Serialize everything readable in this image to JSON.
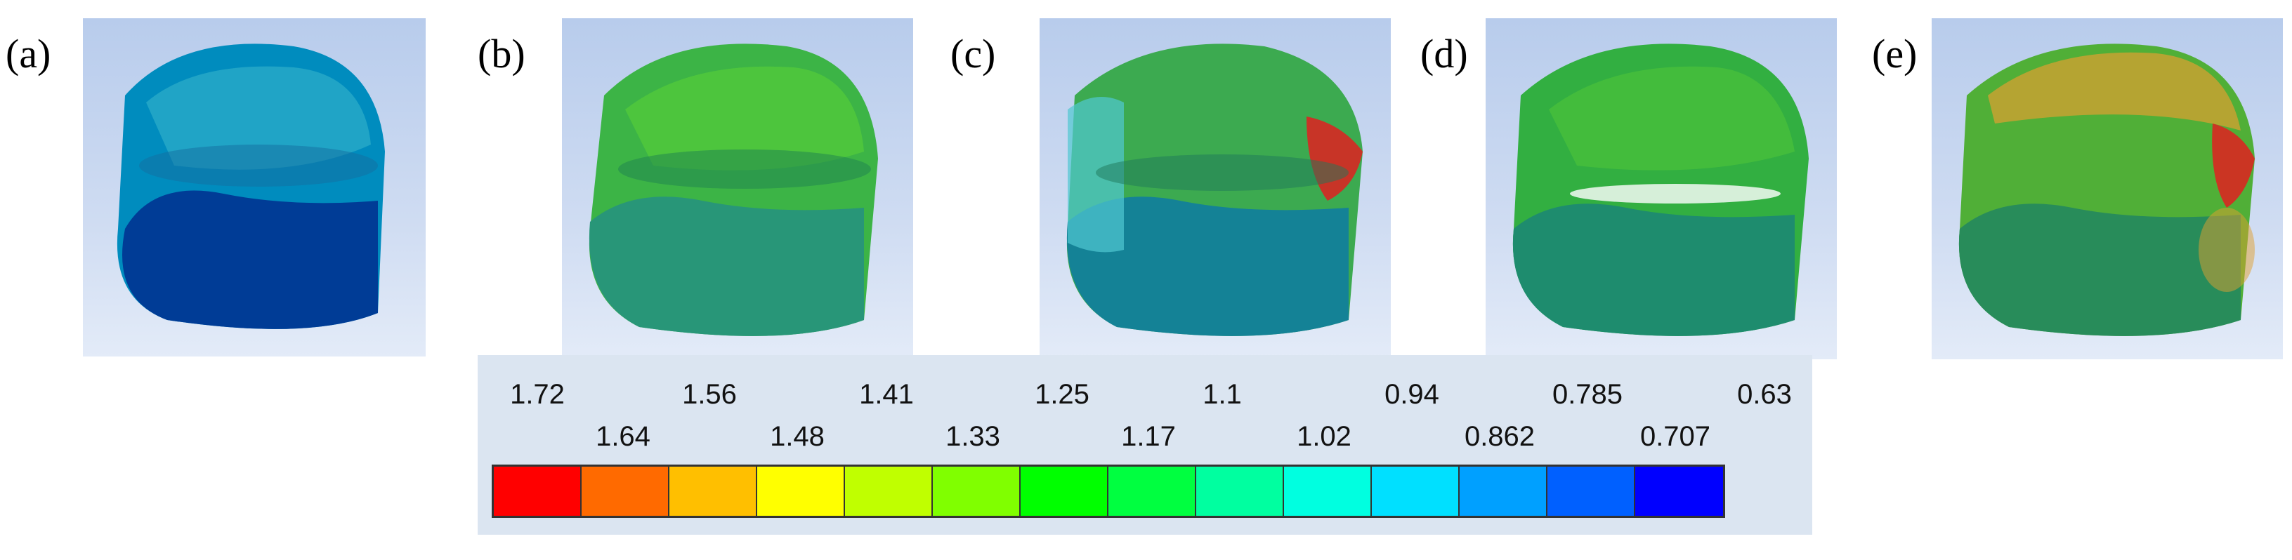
{
  "panels": [
    {
      "label": "(a)",
      "fill": "rgb(0,88,168)",
      "wall": "rgb(0,140,190)"
    },
    {
      "label": "(b)",
      "fill": "rgb(40,150,120)",
      "wall": "rgb(60,180,70)"
    },
    {
      "label": "(c)",
      "fill": "rgb(20,130,150)",
      "wall": "rgb(60,170,80)"
    },
    {
      "label": "(d)",
      "fill": "rgb(30,140,110)",
      "wall": "rgb(50,175,65)"
    },
    {
      "label": "(e)",
      "fill": "rgb(40,140,90)",
      "wall": "rgb(80,175,55)"
    }
  ],
  "legend": {
    "top_ticks": [
      "1.72",
      "1.56",
      "1.41",
      "1.25",
      "1.1",
      "0.94",
      "0.785",
      "0.63"
    ],
    "bottom_ticks": [
      "1.64",
      "1.48",
      "1.33",
      "1.17",
      "1.02",
      "0.862",
      "0.707"
    ],
    "colors": [
      "#ff0000",
      "#ff6a00",
      "#ffbf00",
      "#ffff00",
      "#c0ff00",
      "#80ff00",
      "#00ff00",
      "#00ff40",
      "#00ffa0",
      "#00ffe0",
      "#00e0ff",
      "#00a0ff",
      "#0060ff",
      "#0000ff"
    ]
  },
  "accents": {
    "hotspot_red": "#e02020",
    "hotspot_orange": "#e0a030"
  }
}
